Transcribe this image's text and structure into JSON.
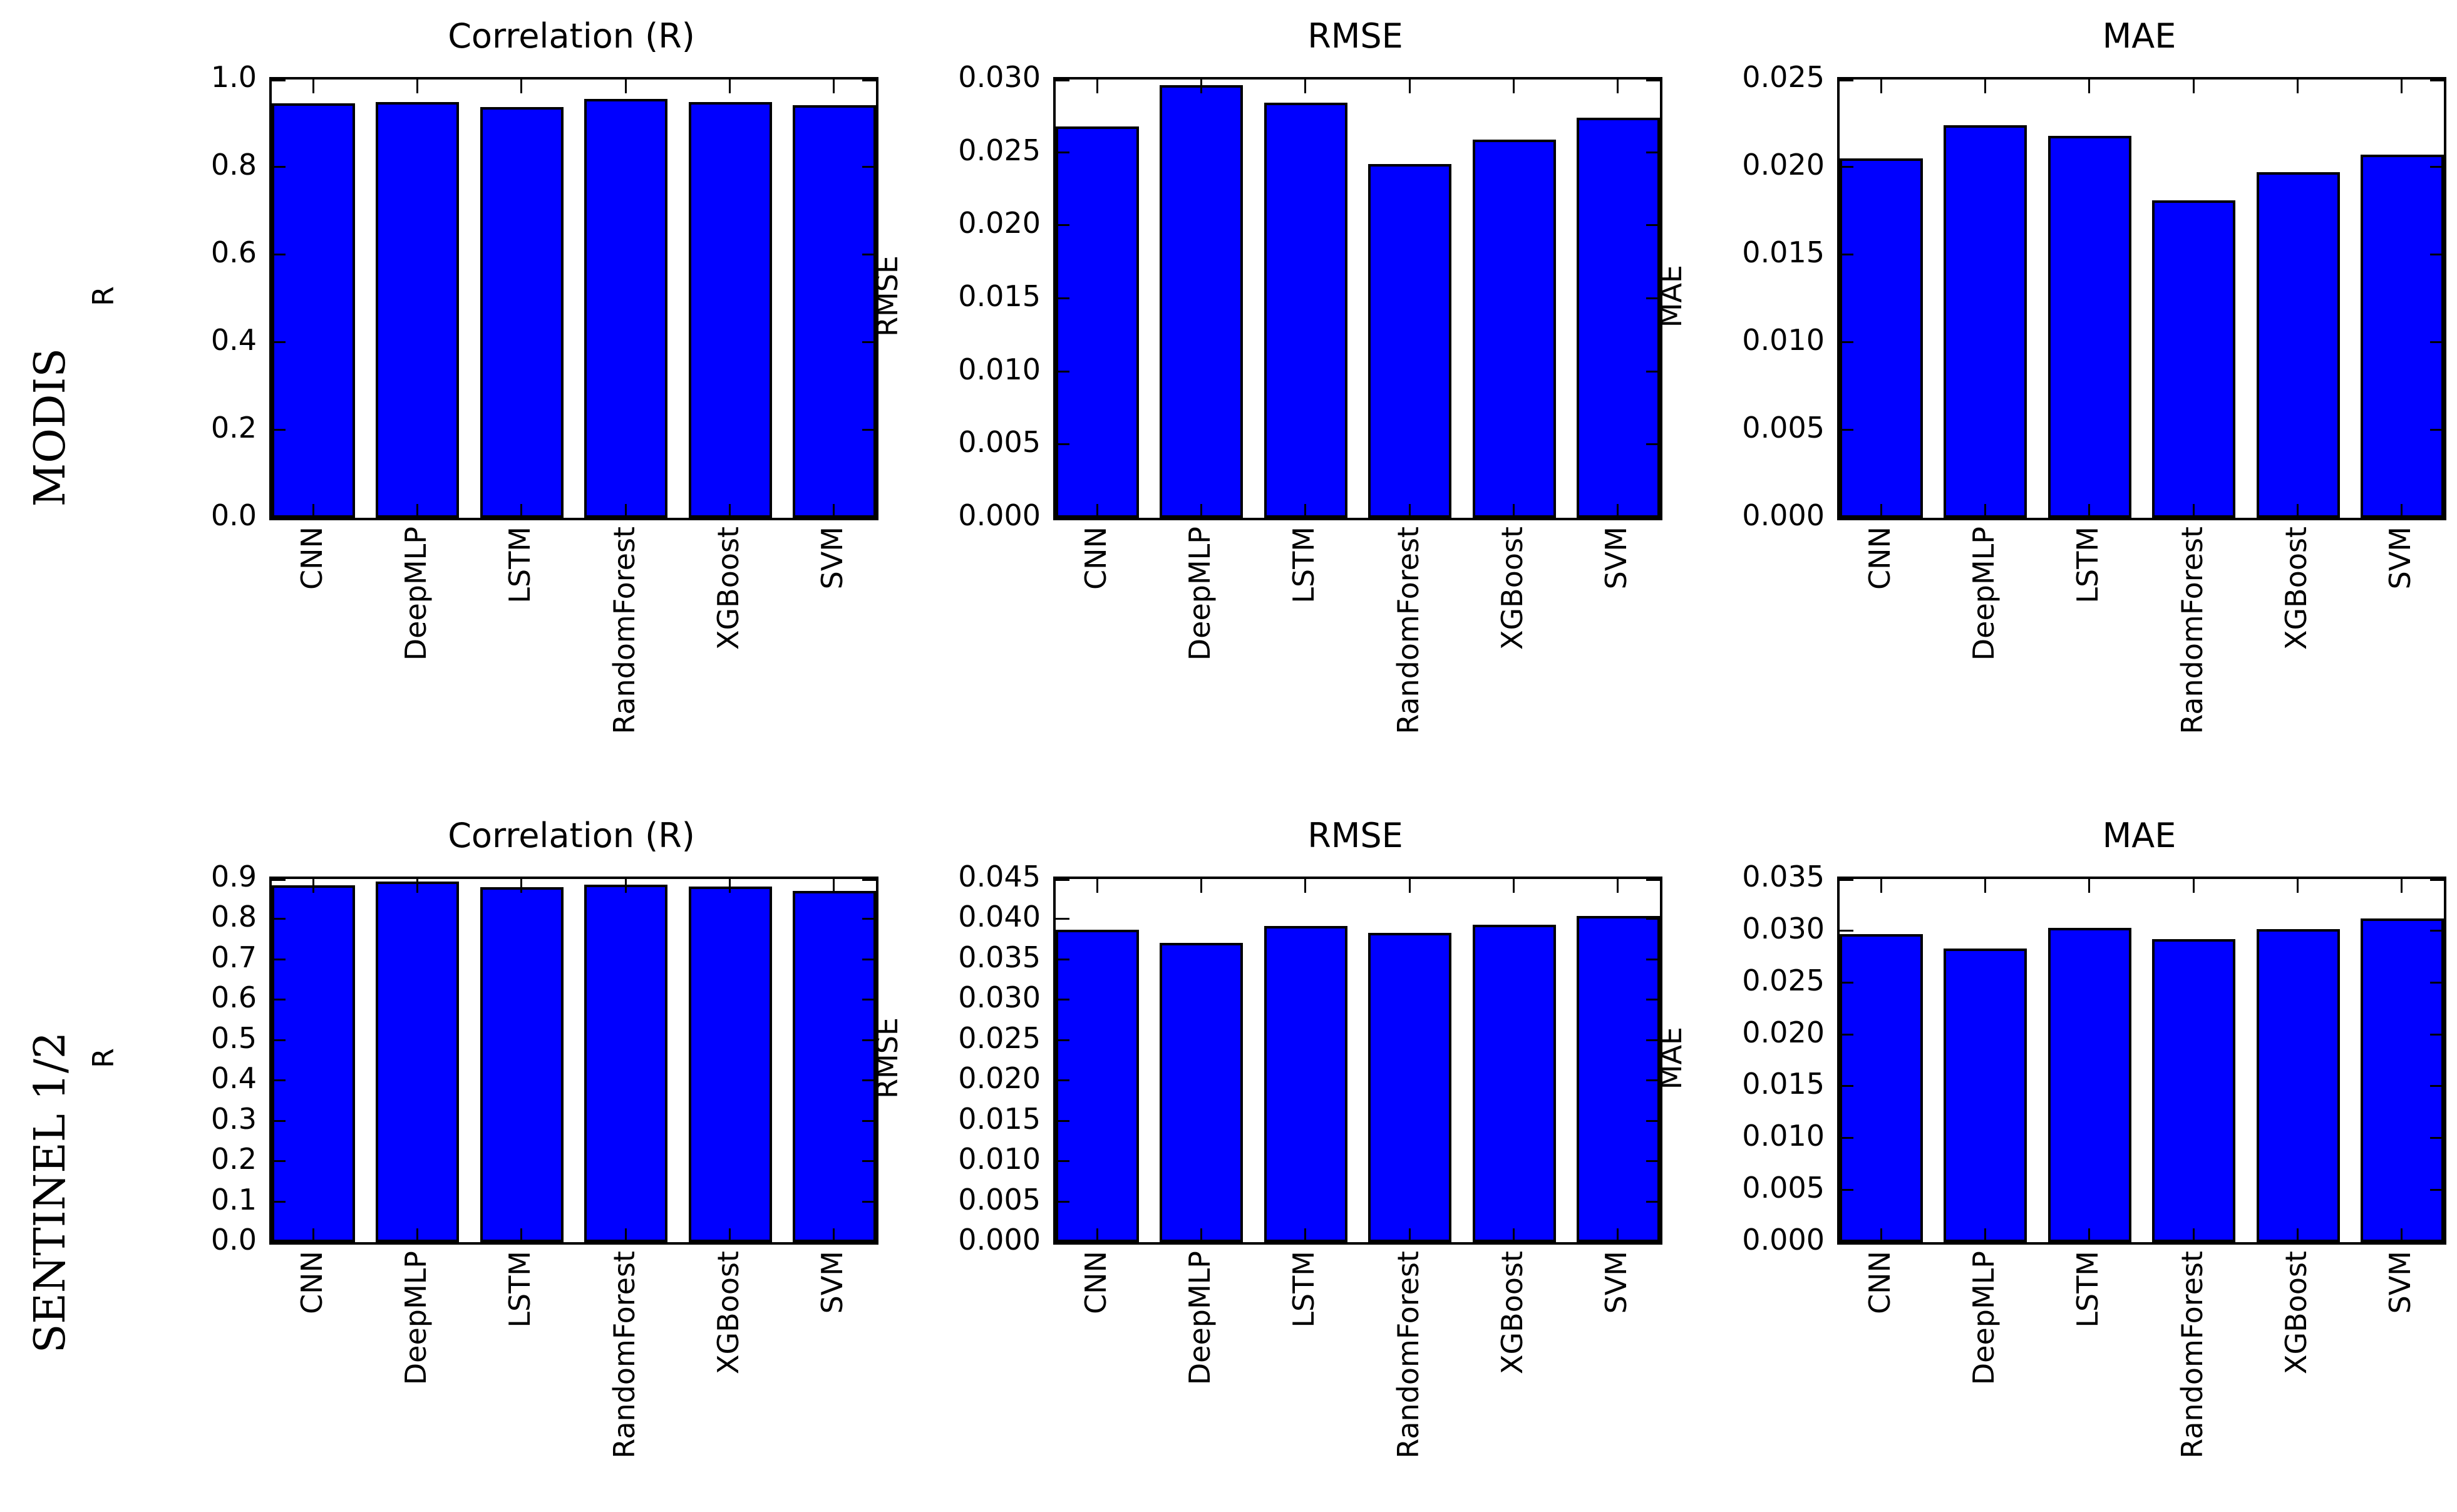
{
  "figure": {
    "background_color": "#ffffff",
    "bar_fill_color": "#0000ff",
    "bar_edge_color": "#000000",
    "rows": [
      {
        "label": "MODIS"
      },
      {
        "label": "SENTINEL 1/2"
      }
    ]
  },
  "chart_data": [
    {
      "type": "bar",
      "row": "MODIS",
      "title": "Correlation (R)",
      "ylabel": "R",
      "xlabel": "",
      "categories": [
        "CNN",
        "DeepMLP",
        "LSTM",
        "RandomForest",
        "XGBoost",
        "SVM"
      ],
      "values": [
        0.945,
        0.949,
        0.937,
        0.956,
        0.948,
        0.942
      ],
      "ylim": [
        0,
        1.0
      ],
      "ytick_labels": [
        "1.0",
        "0.8",
        "0.6",
        "0.4",
        "0.2",
        "0.0"
      ],
      "grid": "off",
      "legend": "none"
    },
    {
      "type": "bar",
      "row": "MODIS",
      "title": "RMSE",
      "ylabel": "RMSE",
      "xlabel": "",
      "categories": [
        "CNN",
        "DeepMLP",
        "LSTM",
        "RandomForest",
        "XGBoost",
        "SVM"
      ],
      "values": [
        0.0268,
        0.0296,
        0.0284,
        0.0242,
        0.0259,
        0.0274
      ],
      "ylim": [
        0,
        0.03
      ],
      "ytick_labels": [
        "0.030",
        "0.025",
        "0.020",
        "0.015",
        "0.010",
        "0.005",
        "0.000"
      ],
      "grid": "off",
      "legend": "none"
    },
    {
      "type": "bar",
      "row": "MODIS",
      "title": "MAE",
      "ylabel": "MAE",
      "xlabel": "",
      "categories": [
        "CNN",
        "DeepMLP",
        "LSTM",
        "RandomForest",
        "XGBoost",
        "SVM"
      ],
      "values": [
        0.0205,
        0.0224,
        0.0218,
        0.0181,
        0.0197,
        0.0207
      ],
      "ylim": [
        0,
        0.025
      ],
      "ytick_labels": [
        "0.025",
        "0.020",
        "0.015",
        "0.010",
        "0.005",
        "0.000"
      ],
      "grid": "off",
      "legend": "none"
    },
    {
      "type": "bar",
      "row": "SENTINEL 1/2",
      "title": "Correlation (R)",
      "ylabel": "R",
      "xlabel": "",
      "categories": [
        "CNN",
        "DeepMLP",
        "LSTM",
        "RandomForest",
        "XGBoost",
        "SVM"
      ],
      "values": [
        0.884,
        0.894,
        0.88,
        0.886,
        0.881,
        0.871
      ],
      "ylim": [
        0,
        0.9
      ],
      "ytick_labels": [
        "0.9",
        "0.8",
        "0.7",
        "0.6",
        "0.5",
        "0.4",
        "0.3",
        "0.2",
        "0.1",
        "0.0"
      ],
      "grid": "off",
      "legend": "none"
    },
    {
      "type": "bar",
      "row": "SENTINEL 1/2",
      "title": "RMSE",
      "ylabel": "RMSE",
      "xlabel": "",
      "categories": [
        "CNN",
        "DeepMLP",
        "LSTM",
        "RandomForest",
        "XGBoost",
        "SVM"
      ],
      "values": [
        0.0387,
        0.0371,
        0.0392,
        0.0383,
        0.0393,
        0.0404
      ],
      "ylim": [
        0,
        0.045
      ],
      "ytick_labels": [
        "0.045",
        "0.040",
        "0.035",
        "0.030",
        "0.025",
        "0.020",
        "0.015",
        "0.010",
        "0.005",
        "0.000"
      ],
      "grid": "off",
      "legend": "none"
    },
    {
      "type": "bar",
      "row": "SENTINEL 1/2",
      "title": "MAE",
      "ylabel": "MAE",
      "xlabel": "",
      "categories": [
        "CNN",
        "DeepMLP",
        "LSTM",
        "RandomForest",
        "XGBoost",
        "SVM"
      ],
      "values": [
        0.0297,
        0.0283,
        0.0303,
        0.0292,
        0.0302,
        0.0312
      ],
      "ylim": [
        0,
        0.035
      ],
      "ytick_labels": [
        "0.035",
        "0.030",
        "0.025",
        "0.020",
        "0.015",
        "0.010",
        "0.005",
        "0.000"
      ],
      "grid": "off",
      "legend": "none"
    }
  ]
}
